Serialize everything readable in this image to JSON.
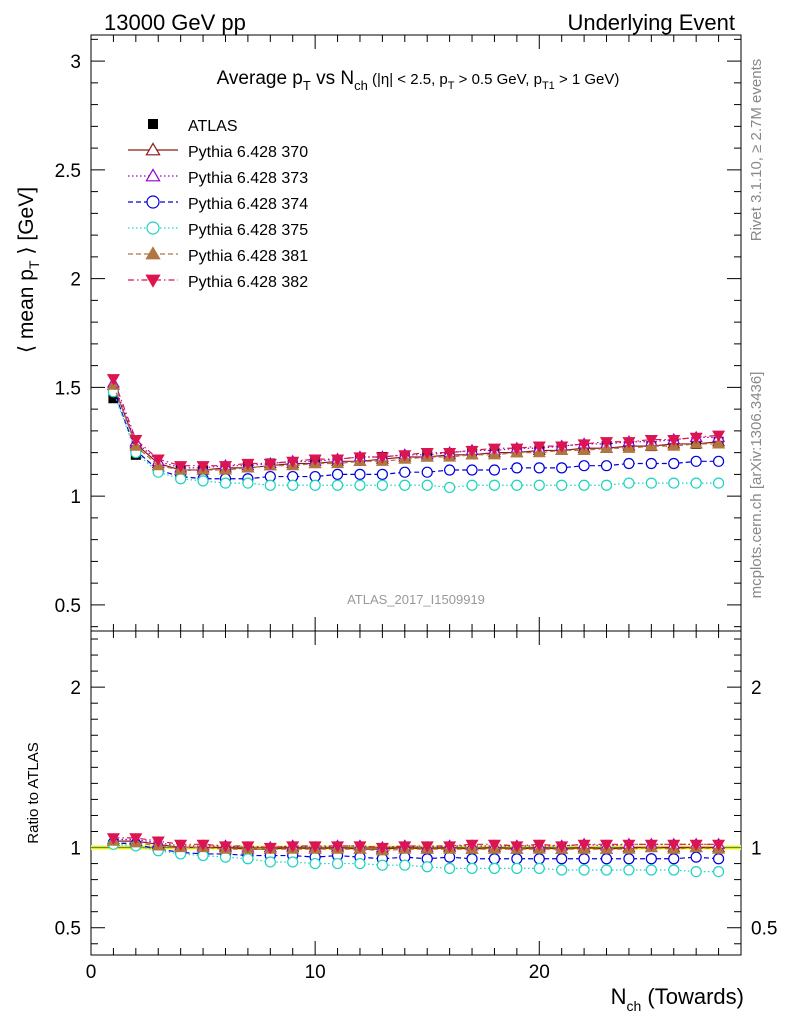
{
  "header": {
    "left": "13000 GeV pp",
    "right": "Underlying Event"
  },
  "side_labels": {
    "rivet": "Rivet 3.1.10, ≥ 2.7M events",
    "mcplots": "mcplots.cern.ch [arXiv:1306.3436]"
  },
  "analysis_id": "ATLAS_2017_I1509919",
  "colors": {
    "ATLAS": "#000000",
    "Pythia 6.428 370": "#8b1a1a",
    "Pythia 6.428 373": "#9400d3",
    "Pythia 6.428 374": "#0000dd",
    "Pythia 6.428 375": "#1ad4c0",
    "Pythia 6.428 381": "#b07840",
    "Pythia 6.428 382": "#dc1450",
    "ratio_line": "#6b8e23"
  },
  "chart_data": [
    {
      "type": "scatter",
      "panel": "main",
      "title": "Average p_T vs N_ch (|η| < 2.5, p_T > 0.5 GeV, p_T1 > 1 GeV)",
      "title_parts": {
        "a": "Average p",
        "a_sub": "T",
        "b": " vs N",
        "b_sub": "ch",
        "c": " (|η| < 2.5, p",
        "c_sub": "T",
        "d": " > 0.5 GeV, p",
        "d_sub": "T1",
        "e": " > 1 GeV)"
      },
      "ylabel": "⟨ mean p_T ⟩ [GeV]",
      "ylabel_parts": {
        "pre": "⟨ mean p",
        "sub": "T",
        "post": " ⟩ [GeV]"
      },
      "xlim": [
        0,
        29
      ],
      "ylim": [
        0.38,
        3.12
      ],
      "yticks": [
        0.5,
        1,
        1.5,
        2,
        2.5,
        3
      ],
      "ytick_labels": [
        "0.5",
        "1",
        "1.5",
        "2",
        "2.5",
        "3"
      ],
      "x": [
        1,
        2,
        3,
        4,
        5,
        6,
        7,
        8,
        9,
        10,
        11,
        12,
        13,
        14,
        15,
        16,
        17,
        18,
        19,
        20,
        21,
        22,
        23,
        24,
        25,
        26,
        27,
        28
      ],
      "series": [
        {
          "name": "ATLAS",
          "marker": "square-filled",
          "line": "none",
          "values": [
            1.45,
            1.19,
            1.13,
            1.12,
            1.12,
            1.13,
            1.14,
            1.15,
            1.15,
            1.16,
            1.16,
            1.17,
            1.18,
            1.18,
            1.19,
            1.19,
            1.2,
            1.2,
            1.21,
            1.21,
            1.22,
            1.22,
            1.23,
            1.23,
            1.23,
            1.24,
            1.24,
            1.25
          ]
        },
        {
          "name": "Pythia 6.428 370",
          "marker": "triangle-up-open",
          "line": "solid",
          "values": [
            1.51,
            1.24,
            1.15,
            1.12,
            1.12,
            1.13,
            1.13,
            1.14,
            1.15,
            1.15,
            1.16,
            1.16,
            1.17,
            1.18,
            1.18,
            1.19,
            1.19,
            1.2,
            1.2,
            1.21,
            1.21,
            1.22,
            1.22,
            1.23,
            1.23,
            1.24,
            1.24,
            1.25
          ]
        },
        {
          "name": "Pythia 6.428 373",
          "marker": "triangle-up-open",
          "line": "dotted",
          "values": [
            1.52,
            1.25,
            1.16,
            1.13,
            1.13,
            1.14,
            1.14,
            1.15,
            1.16,
            1.16,
            1.17,
            1.18,
            1.18,
            1.19,
            1.19,
            1.2,
            1.21,
            1.21,
            1.22,
            1.22,
            1.23,
            1.24,
            1.24,
            1.25,
            1.25,
            1.26,
            1.27,
            1.27
          ]
        },
        {
          "name": "Pythia 6.428 374",
          "marker": "circle-open",
          "line": "dashed",
          "values": [
            1.49,
            1.21,
            1.12,
            1.09,
            1.08,
            1.08,
            1.08,
            1.09,
            1.09,
            1.09,
            1.1,
            1.1,
            1.1,
            1.11,
            1.11,
            1.12,
            1.12,
            1.12,
            1.13,
            1.13,
            1.13,
            1.14,
            1.14,
            1.15,
            1.15,
            1.15,
            1.16,
            1.16
          ]
        },
        {
          "name": "Pythia 6.428 375",
          "marker": "circle-open",
          "line": "dotted",
          "values": [
            1.48,
            1.2,
            1.11,
            1.08,
            1.07,
            1.06,
            1.06,
            1.05,
            1.05,
            1.05,
            1.05,
            1.05,
            1.05,
            1.05,
            1.05,
            1.04,
            1.05,
            1.05,
            1.05,
            1.05,
            1.05,
            1.05,
            1.05,
            1.06,
            1.06,
            1.06,
            1.06,
            1.06
          ]
        },
        {
          "name": "Pythia 6.428 381",
          "marker": "triangle-up-filled",
          "line": "dashed",
          "values": [
            1.51,
            1.23,
            1.14,
            1.12,
            1.12,
            1.12,
            1.13,
            1.14,
            1.14,
            1.15,
            1.15,
            1.16,
            1.16,
            1.17,
            1.18,
            1.18,
            1.19,
            1.19,
            1.2,
            1.2,
            1.21,
            1.21,
            1.22,
            1.22,
            1.23,
            1.23,
            1.24,
            1.24
          ]
        },
        {
          "name": "Pythia 6.428 382",
          "marker": "triangle-down-filled",
          "line": "dashdot",
          "values": [
            1.54,
            1.26,
            1.17,
            1.14,
            1.14,
            1.14,
            1.15,
            1.15,
            1.16,
            1.17,
            1.17,
            1.18,
            1.18,
            1.19,
            1.2,
            1.2,
            1.21,
            1.22,
            1.22,
            1.23,
            1.23,
            1.24,
            1.25,
            1.25,
            1.26,
            1.26,
            1.27,
            1.28
          ]
        }
      ]
    },
    {
      "type": "scatter",
      "panel": "ratio",
      "ylabel": "Ratio to ATLAS",
      "xlabel": "N_ch (Towards)",
      "xlabel_parts": {
        "pre": "N",
        "sub": "ch",
        "post": " (Towards)"
      },
      "xlim": [
        0,
        29
      ],
      "xticks": [
        0,
        10,
        20
      ],
      "xtick_labels": [
        "0",
        "10",
        "20"
      ],
      "ylim": [
        0.33,
        2.35
      ],
      "yticks": [
        0.5,
        1,
        2
      ],
      "ytick_labels": [
        "0.5",
        "1",
        "2"
      ],
      "reference": 1.0,
      "x": [
        1,
        2,
        3,
        4,
        5,
        6,
        7,
        8,
        9,
        10,
        11,
        12,
        13,
        14,
        15,
        16,
        17,
        18,
        19,
        20,
        21,
        22,
        23,
        24,
        25,
        26,
        27,
        28
      ],
      "series": [
        {
          "name": "Pythia 6.428 370",
          "values": [
            1.04,
            1.04,
            1.02,
            1.0,
            1.0,
            1.0,
            0.99,
            0.99,
            1.0,
            0.99,
            1.0,
            0.99,
            0.99,
            1.0,
            0.99,
            1.0,
            0.99,
            1.0,
            0.99,
            1.0,
            0.99,
            1.0,
            0.99,
            1.0,
            1.0,
            1.0,
            1.0,
            1.0
          ]
        },
        {
          "name": "Pythia 6.428 373",
          "values": [
            1.05,
            1.05,
            1.03,
            1.01,
            1.01,
            1.01,
            1.0,
            1.0,
            1.01,
            1.0,
            1.01,
            1.01,
            1.0,
            1.01,
            1.0,
            1.01,
            1.01,
            1.01,
            1.01,
            1.01,
            1.01,
            1.02,
            1.01,
            1.02,
            1.02,
            1.02,
            1.02,
            1.02
          ]
        },
        {
          "name": "Pythia 6.428 374",
          "values": [
            1.03,
            1.02,
            0.99,
            0.97,
            0.96,
            0.96,
            0.95,
            0.95,
            0.95,
            0.94,
            0.95,
            0.94,
            0.93,
            0.94,
            0.93,
            0.94,
            0.93,
            0.93,
            0.93,
            0.93,
            0.93,
            0.93,
            0.93,
            0.93,
            0.93,
            0.93,
            0.94,
            0.93
          ]
        },
        {
          "name": "Pythia 6.428 375",
          "values": [
            1.02,
            1.01,
            0.98,
            0.96,
            0.95,
            0.94,
            0.93,
            0.91,
            0.91,
            0.9,
            0.9,
            0.9,
            0.89,
            0.89,
            0.88,
            0.87,
            0.87,
            0.87,
            0.87,
            0.87,
            0.86,
            0.86,
            0.86,
            0.86,
            0.86,
            0.86,
            0.85,
            0.85
          ]
        },
        {
          "name": "Pythia 6.428 381",
          "values": [
            1.04,
            1.03,
            1.01,
            1.0,
            1.0,
            0.99,
            0.99,
            0.99,
            0.99,
            0.99,
            0.99,
            0.99,
            0.98,
            0.99,
            0.99,
            0.99,
            0.99,
            0.99,
            0.99,
            0.99,
            0.99,
            0.99,
            0.99,
            0.99,
            1.0,
            0.99,
            1.0,
            0.99
          ]
        },
        {
          "name": "Pythia 6.428 382",
          "values": [
            1.06,
            1.06,
            1.04,
            1.02,
            1.02,
            1.01,
            1.01,
            1.0,
            1.01,
            1.01,
            1.01,
            1.01,
            1.0,
            1.01,
            1.01,
            1.01,
            1.02,
            1.02,
            1.01,
            1.02,
            1.01,
            1.02,
            1.02,
            1.02,
            1.02,
            1.02,
            1.02,
            1.02
          ]
        }
      ]
    }
  ]
}
